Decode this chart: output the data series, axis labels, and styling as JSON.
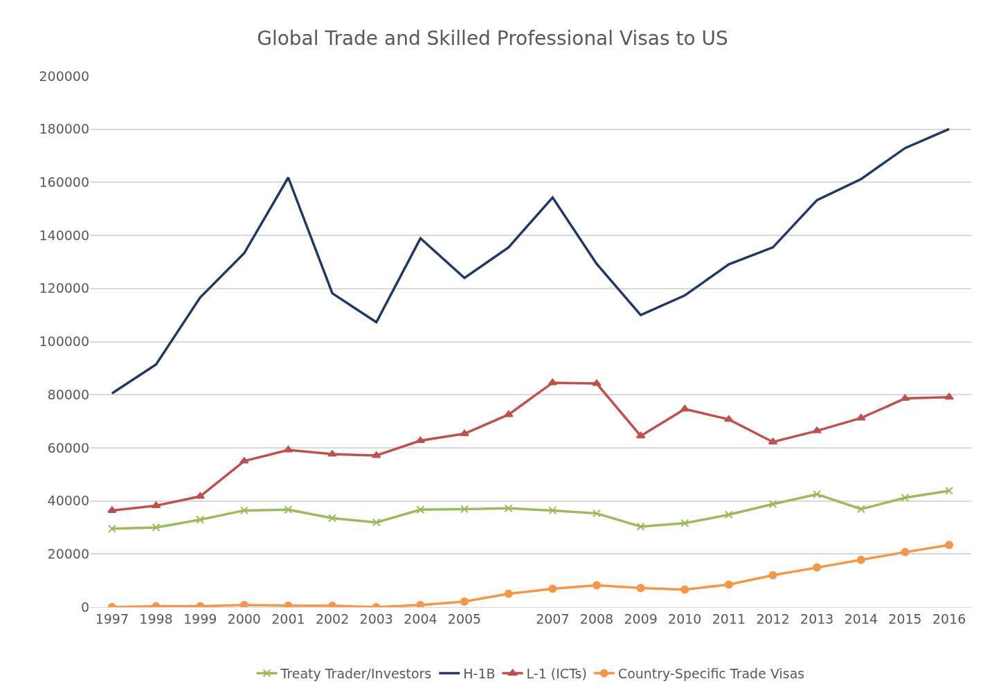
{
  "chart_data": {
    "type": "line",
    "title": "Global Trade and Skilled Professional Visas to US",
    "categories": [
      "1997",
      "1998",
      "1999",
      "2000",
      "2001",
      "2002",
      "2003",
      "2004",
      "2005",
      null,
      "2007",
      "2008",
      "2009",
      "2010",
      "2011",
      "2012",
      "2013",
      "2014",
      "2015",
      "2016"
    ],
    "series": [
      {
        "name": "Treaty Trader/Investors",
        "color": "#9bbb59",
        "marker": "cross",
        "values": [
          29500,
          30000,
          32900,
          36400,
          36700,
          33500,
          31900,
          36700,
          36900,
          37200,
          36400,
          35300,
          30300,
          31600,
          34800,
          38800,
          42500,
          36900,
          41200,
          43800
        ]
      },
      {
        "name": "H-1B",
        "color": "#1f3864",
        "marker": "none",
        "values": [
          80500,
          91400,
          116600,
          133300,
          161800,
          118200,
          107300,
          138900,
          124000,
          135500,
          154300,
          129300,
          110000,
          117400,
          129100,
          135500,
          153300,
          161200,
          172900,
          180100
        ]
      },
      {
        "name": "L-1 (ICTs)",
        "color": "#c0504d",
        "marker": "triangle",
        "values": [
          36400,
          38200,
          41700,
          55000,
          59200,
          57600,
          57100,
          62700,
          65300,
          72500,
          84500,
          84200,
          64500,
          74600,
          70700,
          62200,
          66400,
          71200,
          78600,
          79100
        ]
      },
      {
        "name": "Country-Specific Trade Visas",
        "color": "#f79646",
        "marker": "circle",
        "values": [
          0,
          300,
          300,
          800,
          500,
          500,
          0,
          800,
          2100,
          5000,
          6900,
          8200,
          7200,
          6600,
          8500,
          12000,
          14900,
          17800,
          20700,
          23400
        ]
      }
    ],
    "ylim": [
      0,
      200000
    ],
    "yticks": [
      0,
      20000,
      40000,
      60000,
      80000,
      100000,
      120000,
      140000,
      160000,
      180000,
      200000
    ],
    "grid": "y",
    "legend": "bottom",
    "line_style": "solid"
  }
}
